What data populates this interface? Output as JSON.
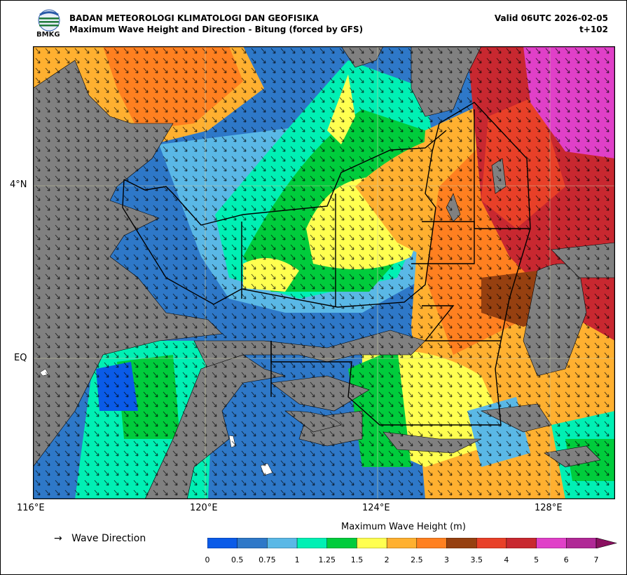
{
  "header": {
    "org": "BADAN METEOROLOGI KLIMATOLOGI DAN GEOFISIKA",
    "title": "Maximum Wave Height and Direction - Bitung (forced by GFS)",
    "valid": "Valid 06UTC 2026-02-05",
    "lead": "t+102",
    "logo_text": "BMKG"
  },
  "map": {
    "lat_labels": [
      "4°N",
      "EQ"
    ],
    "lon_labels": [
      "116°E",
      "120°E",
      "124°E",
      "128°E"
    ],
    "land_color": "#808080"
  },
  "legend": {
    "direction_arrow": "→",
    "direction_label": "Wave Direction",
    "colorbar_title": "Maximum Wave Height (m)",
    "ticks": [
      "0",
      "0.5",
      "0.75",
      "1",
      "1.25",
      "1.5",
      "2",
      "2.5",
      "3",
      "3.5",
      "4",
      "5",
      "6",
      "7"
    ],
    "colors": [
      "#0a5be8",
      "#2e78c8",
      "#5ab8e6",
      "#00f0b4",
      "#00cc3c",
      "#ffff50",
      "#ffb030",
      "#ff8020",
      "#964010",
      "#e84028",
      "#c82830",
      "#e040c8",
      "#b02896"
    ]
  }
}
